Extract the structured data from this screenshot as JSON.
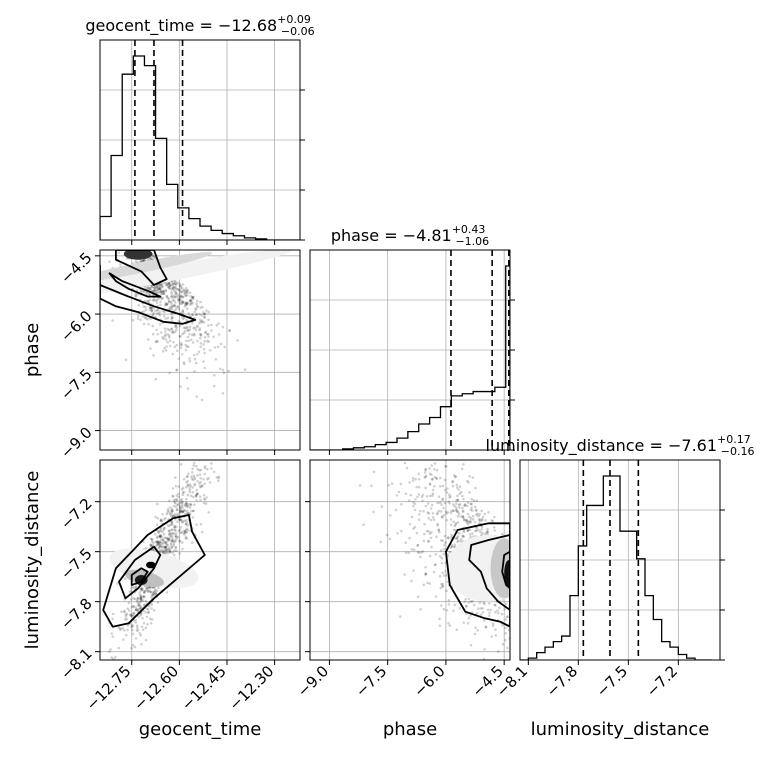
{
  "chart_data": {
    "type": "corner",
    "parameters": [
      "geocent_time",
      "phase",
      "luminosity_distance"
    ],
    "axis_labels": {
      "geocent_time": "geocent_time",
      "phase": "phase",
      "luminosity_distance": "luminosity_distance"
    },
    "ranges": {
      "geocent_time": [
        -12.85,
        -12.22
      ],
      "phase": [
        -9.5,
        -4.35
      ],
      "luminosity_distance": [
        -8.15,
        -6.95
      ]
    },
    "ticks": {
      "geocent_time": [
        -12.75,
        -12.6,
        -12.45,
        -12.3
      ],
      "phase": [
        -9.0,
        -7.5,
        -6.0,
        -4.5
      ],
      "luminosity_distance": [
        -8.1,
        -7.8,
        -7.5,
        -7.2
      ]
    },
    "tick_labels": {
      "geocent_time": [
        "−12.75",
        "−12.60",
        "−12.45",
        "−12.30"
      ],
      "phase": [
        "−9.0",
        "−7.5",
        "−6.0",
        "−4.5"
      ],
      "luminosity_distance": [
        "−8.1",
        "−7.8",
        "−7.5",
        "−7.2"
      ]
    },
    "titles": {
      "geocent_time": {
        "prefix": "geocent_time = −12.68",
        "upper": "+0.09",
        "lower": "−0.06"
      },
      "phase": {
        "prefix": "phase = −4.81",
        "upper": "+0.43",
        "lower": "−1.06"
      },
      "luminosity_distance": {
        "prefix": "luminosity_distance = −7.61",
        "upper": "+0.17",
        "lower": "−0.16"
      }
    },
    "quantiles": {
      "geocent_time": [
        -12.74,
        -12.68,
        -12.59
      ],
      "phase": [
        -5.87,
        -4.81,
        -4.38
      ],
      "luminosity_distance": [
        -7.77,
        -7.61,
        -7.44
      ]
    },
    "histograms": {
      "geocent_time": {
        "edges": [
          -12.85,
          -12.815,
          -12.78,
          -12.745,
          -12.71,
          -12.675,
          -12.64,
          -12.605,
          -12.57,
          -12.535,
          -12.5,
          -12.465,
          -12.43,
          -12.395,
          -12.36,
          -12.325,
          -12.29,
          -12.255,
          -12.22
        ],
        "counts": [
          0.22,
          0.79,
          1.55,
          1.72,
          1.63,
          0.95,
          0.52,
          0.3,
          0.2,
          0.13,
          0.09,
          0.06,
          0.04,
          0.02,
          0.01,
          0.0,
          0.0,
          0.0
        ]
      },
      "phase": {
        "edges": [
          -9.5,
          -9.22,
          -8.94,
          -8.66,
          -8.38,
          -8.1,
          -7.82,
          -7.54,
          -7.26,
          -6.98,
          -6.7,
          -6.42,
          -6.14,
          -5.86,
          -5.58,
          -5.3,
          -5.02,
          -4.74,
          -4.46,
          -4.35
        ],
        "counts": [
          0.0,
          0.0,
          0.0,
          0.005,
          0.01,
          0.015,
          0.025,
          0.035,
          0.055,
          0.085,
          0.12,
          0.15,
          0.2,
          0.25,
          0.26,
          0.27,
          0.27,
          0.29,
          0.85
        ]
      },
      "luminosity_distance": {
        "edges": [
          -8.15,
          -8.1,
          -8.05,
          -8.0,
          -7.95,
          -7.9,
          -7.85,
          -7.8,
          -7.75,
          -7.7,
          -7.65,
          -7.6,
          -7.55,
          -7.5,
          -7.45,
          -7.4,
          -7.35,
          -7.3,
          -7.25,
          -7.2,
          -7.15,
          -7.1,
          -7.05,
          -7.0
        ],
        "counts": [
          0.0,
          0.01,
          0.04,
          0.07,
          0.1,
          0.13,
          0.35,
          0.62,
          0.84,
          0.84,
          1.0,
          1.0,
          0.7,
          0.7,
          0.55,
          0.35,
          0.22,
          0.1,
          0.07,
          0.03,
          0.01,
          0.0,
          0.0
        ]
      }
    },
    "scatter_samples": 900,
    "contour_levels": [
      0.5,
      0.8,
      0.9
    ]
  }
}
